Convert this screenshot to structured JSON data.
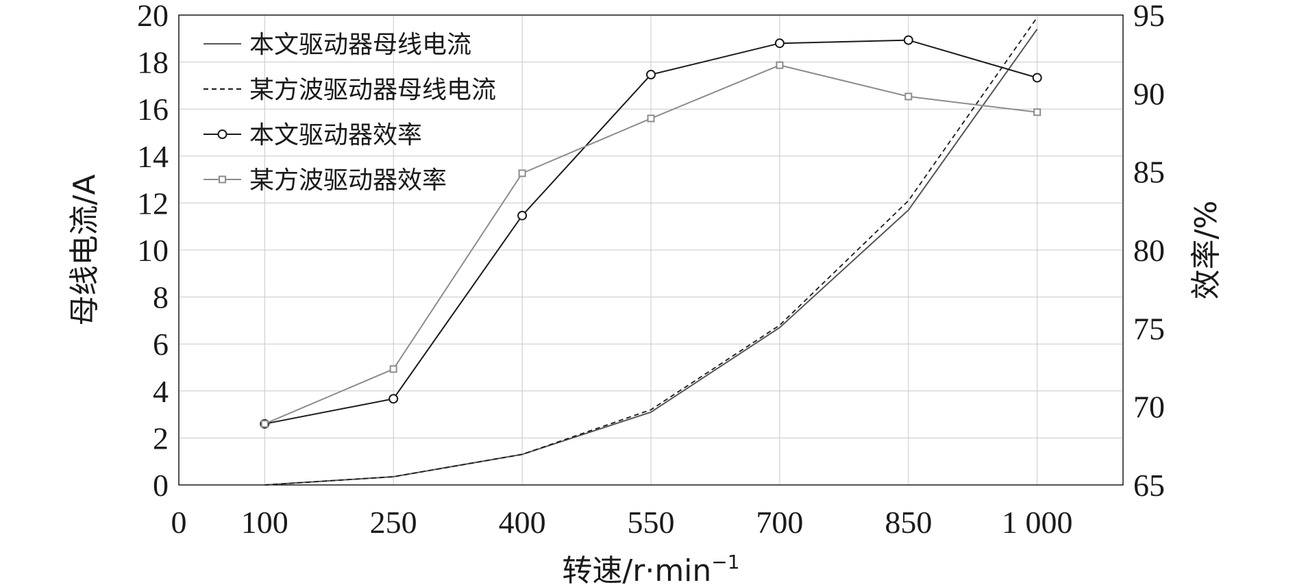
{
  "chart_data": {
    "type": "line",
    "x": [
      100,
      250,
      400,
      550,
      700,
      850,
      1000
    ],
    "x_tick_labels": [
      "0",
      "100",
      "250",
      "400",
      "550",
      "700",
      "850",
      "1 000"
    ],
    "x_tick_values": [
      0,
      100,
      250,
      400,
      550,
      700,
      850,
      1000
    ],
    "xlim": [
      0,
      1100
    ],
    "xlabel": "转速/r·min",
    "xlabel_sup": "−1",
    "ylabel_left": "母线电流/A",
    "ylim_left": [
      0,
      20
    ],
    "yticks_left": [
      0,
      2,
      4,
      6,
      8,
      10,
      12,
      14,
      16,
      18,
      20
    ],
    "ylabel_right": "效率/%",
    "ylim_right": [
      65,
      95
    ],
    "yticks_right": [
      65,
      70,
      75,
      80,
      85,
      90,
      95
    ],
    "grid": true,
    "legend_position": "top-left",
    "series": [
      {
        "name": "本文驱动器母线电流",
        "axis": "left",
        "style": "solid",
        "marker": "none",
        "color": "#555555",
        "values": [
          0.0,
          0.35,
          1.3,
          3.1,
          6.7,
          11.7,
          19.4
        ]
      },
      {
        "name": "某方波驱动器母线电流",
        "axis": "left",
        "style": "dashed",
        "marker": "none",
        "color": "#1a1a1a",
        "values": [
          0.0,
          0.35,
          1.3,
          3.2,
          6.8,
          12.1,
          19.9
        ]
      },
      {
        "name": "本文驱动器效率",
        "axis": "right",
        "style": "solid",
        "marker": "circle",
        "color": "#1a1a1a",
        "values": [
          68.9,
          70.5,
          82.2,
          91.2,
          93.2,
          93.4,
          91.0
        ]
      },
      {
        "name": "某方波驱动器效率",
        "axis": "right",
        "style": "solid",
        "marker": "square",
        "color": "#8c8c8c",
        "values": [
          68.9,
          72.4,
          84.9,
          88.4,
          91.8,
          89.8,
          88.8
        ]
      }
    ]
  }
}
